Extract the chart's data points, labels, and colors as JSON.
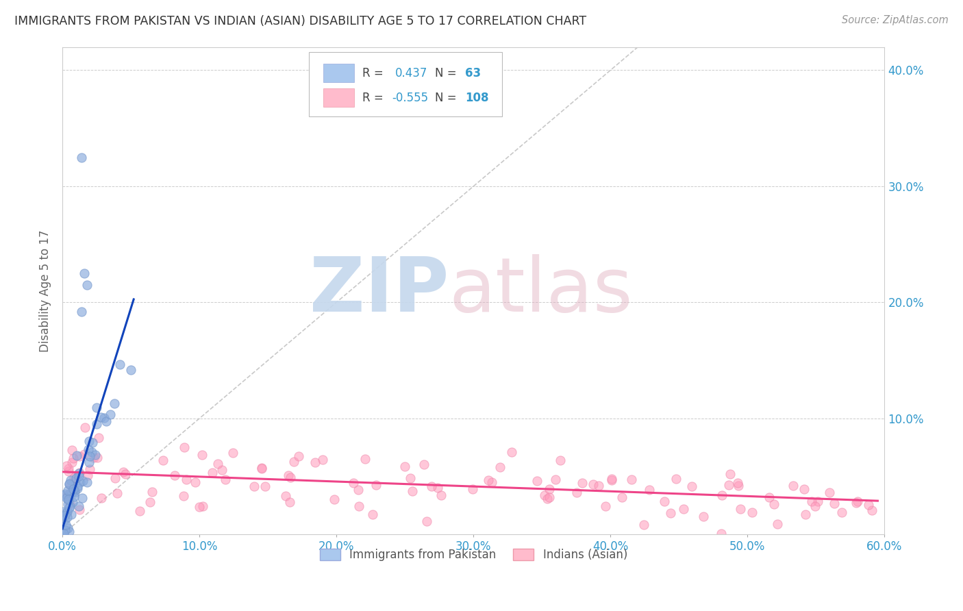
{
  "title": "IMMIGRANTS FROM PAKISTAN VS INDIAN (ASIAN) DISABILITY AGE 5 TO 17 CORRELATION CHART",
  "source": "Source: ZipAtlas.com",
  "ylabel": "Disability Age 5 to 17",
  "legend_label_1": "Immigrants from Pakistan",
  "legend_label_2": "Indians (Asian)",
  "r1": 0.437,
  "n1": 63,
  "r2": -0.555,
  "n2": 108,
  "xlim": [
    0.0,
    0.6
  ],
  "ylim": [
    0.0,
    0.42
  ],
  "background_color": "#ffffff",
  "grid_color": "#cccccc",
  "title_color": "#333333",
  "source_color": "#999999",
  "blue_marker_color": "#88aadd",
  "blue_edge_color": "#7799cc",
  "pink_marker_color": "#ff99bb",
  "pink_edge_color": "#ee88aa",
  "blue_line_color": "#1144bb",
  "pink_line_color": "#ee4488",
  "ref_line_color": "#bbbbbb",
  "watermark_zip_color": "#c5d8ed",
  "watermark_atlas_color": "#e0b0c0"
}
